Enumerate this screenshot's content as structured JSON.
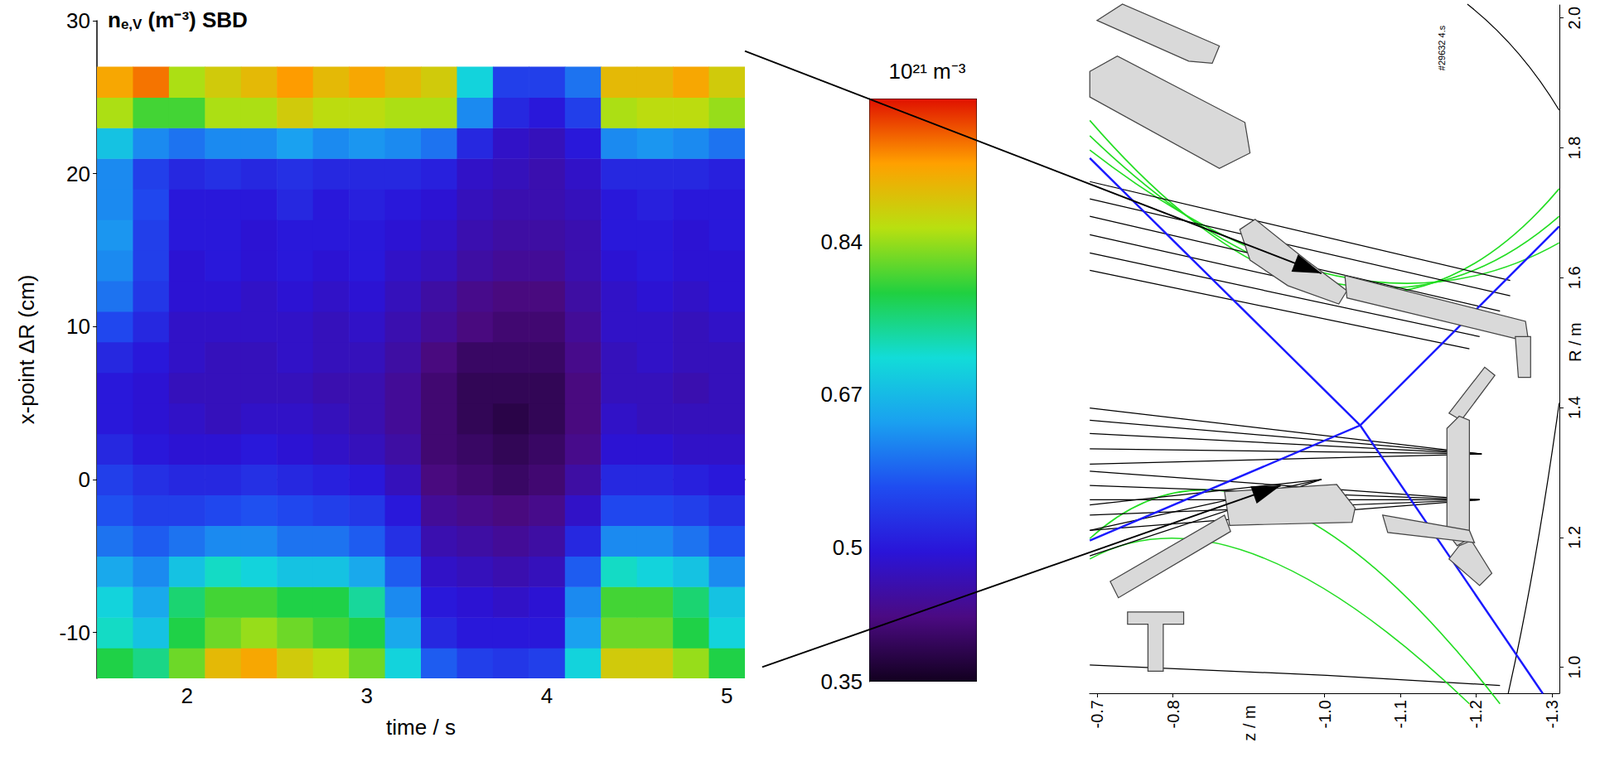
{
  "chart_data": [
    {
      "type": "heatmap",
      "title": [
        "n",
        {
          "sub": "e,V"
        },
        " (m⁻³) SBD"
      ],
      "x_label": "time / s",
      "y_label": "x-point ΔR (cm)",
      "x": [
        1.6,
        1.8,
        2.0,
        2.2,
        2.4,
        2.6,
        2.8,
        3.0,
        3.2,
        3.4,
        3.6,
        3.8,
        4.0,
        4.2,
        4.4,
        4.6,
        4.8,
        5.0
      ],
      "y": [
        -12,
        -10,
        -8,
        -6,
        -4,
        -2,
        0,
        2,
        4,
        6,
        8,
        10,
        12,
        14,
        16,
        18,
        20,
        22,
        24,
        26
      ],
      "values": [
        [
          0.78,
          0.75,
          0.82,
          0.9,
          0.92,
          0.88,
          0.86,
          0.82,
          0.7,
          0.58,
          0.55,
          0.54,
          0.55,
          0.7,
          0.88,
          0.88,
          0.84,
          0.78
        ],
        [
          0.72,
          0.68,
          0.78,
          0.82,
          0.84,
          0.82,
          0.8,
          0.78,
          0.65,
          0.52,
          0.5,
          0.5,
          0.5,
          0.64,
          0.82,
          0.82,
          0.78,
          0.7
        ],
        [
          0.7,
          0.65,
          0.76,
          0.8,
          0.8,
          0.78,
          0.78,
          0.74,
          0.62,
          0.5,
          0.49,
          0.48,
          0.49,
          0.62,
          0.8,
          0.8,
          0.76,
          0.68
        ],
        [
          0.65,
          0.62,
          0.68,
          0.72,
          0.7,
          0.68,
          0.68,
          0.65,
          0.58,
          0.48,
          0.47,
          0.46,
          0.47,
          0.58,
          0.72,
          0.7,
          0.68,
          0.62
        ],
        [
          0.6,
          0.58,
          0.6,
          0.62,
          0.62,
          0.6,
          0.6,
          0.58,
          0.53,
          0.46,
          0.45,
          0.44,
          0.45,
          0.52,
          0.62,
          0.62,
          0.6,
          0.57
        ],
        [
          0.57,
          0.55,
          0.55,
          0.56,
          0.57,
          0.56,
          0.55,
          0.54,
          0.5,
          0.44,
          0.43,
          0.42,
          0.43,
          0.48,
          0.56,
          0.56,
          0.55,
          0.53
        ],
        [
          0.55,
          0.53,
          0.52,
          0.52,
          0.53,
          0.52,
          0.51,
          0.5,
          0.47,
          0.42,
          0.41,
          0.4,
          0.41,
          0.45,
          0.52,
          0.52,
          0.51,
          0.5
        ],
        [
          0.52,
          0.5,
          0.49,
          0.49,
          0.5,
          0.49,
          0.48,
          0.47,
          0.45,
          0.41,
          0.4,
          0.39,
          0.4,
          0.43,
          0.49,
          0.49,
          0.48,
          0.48
        ],
        [
          0.5,
          0.49,
          0.48,
          0.47,
          0.48,
          0.48,
          0.47,
          0.46,
          0.44,
          0.41,
          0.39,
          0.38,
          0.39,
          0.42,
          0.48,
          0.47,
          0.47,
          0.47
        ],
        [
          0.5,
          0.49,
          0.47,
          0.47,
          0.47,
          0.47,
          0.46,
          0.46,
          0.44,
          0.41,
          0.39,
          0.39,
          0.39,
          0.42,
          0.47,
          0.47,
          0.46,
          0.47
        ],
        [
          0.52,
          0.5,
          0.48,
          0.47,
          0.47,
          0.48,
          0.47,
          0.47,
          0.45,
          0.42,
          0.4,
          0.4,
          0.4,
          0.43,
          0.47,
          0.48,
          0.47,
          0.47
        ],
        [
          0.56,
          0.52,
          0.48,
          0.48,
          0.48,
          0.48,
          0.47,
          0.48,
          0.46,
          0.44,
          0.42,
          0.41,
          0.41,
          0.44,
          0.48,
          0.48,
          0.47,
          0.48
        ],
        [
          0.6,
          0.54,
          0.49,
          0.49,
          0.48,
          0.49,
          0.48,
          0.49,
          0.47,
          0.45,
          0.43,
          0.42,
          0.42,
          0.45,
          0.48,
          0.49,
          0.48,
          0.49
        ],
        [
          0.62,
          0.55,
          0.49,
          0.5,
          0.49,
          0.5,
          0.49,
          0.5,
          0.48,
          0.47,
          0.45,
          0.44,
          0.44,
          0.46,
          0.49,
          0.5,
          0.49,
          0.49
        ],
        [
          0.63,
          0.55,
          0.5,
          0.5,
          0.49,
          0.5,
          0.5,
          0.5,
          0.49,
          0.48,
          0.46,
          0.45,
          0.45,
          0.46,
          0.5,
          0.5,
          0.49,
          0.5
        ],
        [
          0.62,
          0.56,
          0.5,
          0.5,
          0.5,
          0.52,
          0.5,
          0.51,
          0.5,
          0.49,
          0.47,
          0.46,
          0.46,
          0.47,
          0.5,
          0.51,
          0.5,
          0.5
        ],
        [
          0.62,
          0.55,
          0.52,
          0.53,
          0.52,
          0.53,
          0.52,
          0.52,
          0.52,
          0.51,
          0.48,
          0.47,
          0.46,
          0.48,
          0.52,
          0.52,
          0.52,
          0.51
        ],
        [
          0.68,
          0.62,
          0.6,
          0.62,
          0.62,
          0.64,
          0.62,
          0.63,
          0.62,
          0.6,
          0.52,
          0.48,
          0.47,
          0.5,
          0.62,
          0.63,
          0.62,
          0.6
        ],
        [
          0.85,
          0.8,
          0.8,
          0.85,
          0.85,
          0.88,
          0.86,
          0.86,
          0.85,
          0.85,
          0.62,
          0.52,
          0.5,
          0.55,
          0.85,
          0.86,
          0.86,
          0.84
        ],
        [
          0.92,
          0.95,
          0.85,
          0.88,
          0.9,
          0.93,
          0.9,
          0.92,
          0.9,
          0.88,
          0.7,
          0.55,
          0.55,
          0.6,
          0.9,
          0.9,
          0.92,
          0.88
        ]
      ],
      "xlim": [
        1.5,
        5.1
      ],
      "xticks": [
        2,
        3,
        4,
        5
      ],
      "ylim": [
        -13,
        30
      ],
      "yticks": [
        -10,
        0,
        10,
        20,
        30
      ],
      "colorbar": {
        "title": "10²¹ m⁻³",
        "range": [
          0.35,
          1.0
        ],
        "ticks": [
          0.35,
          0.5,
          0.67,
          0.84
        ]
      }
    },
    {
      "type": "diagram",
      "x_label": "z / m",
      "y_label": "R / m",
      "annotation": "#29632 4.s",
      "xlim": [
        -0.69,
        -1.31
      ],
      "xticks": [
        -0.7,
        -0.8,
        {
          "value": -1,
          "label": "-1.0"
        },
        -1.1,
        -1.2,
        -1.3
      ],
      "ylim": [
        0.96,
        2.02
      ],
      "yticks": [
        {
          "value": 1,
          "label": "1.0"
        },
        1.2,
        1.4,
        1.6,
        1.8,
        {
          "value": 2,
          "label": "2.0"
        }
      ]
    }
  ]
}
